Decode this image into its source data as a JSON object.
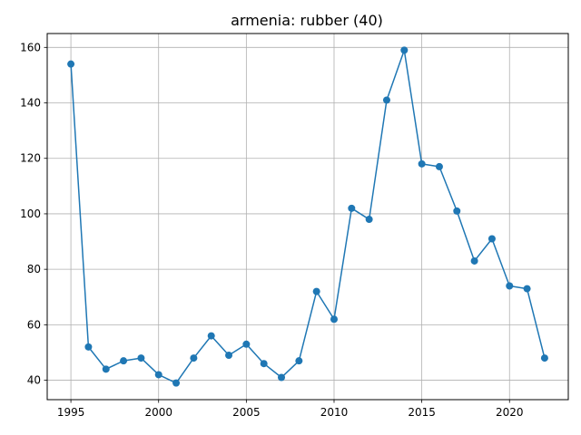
{
  "chart_data": {
    "type": "line",
    "title": "armenia: rubber (40)",
    "xlabel": "",
    "ylabel": "",
    "xlim": [
      1993.65,
      2023.35
    ],
    "ylim": [
      33.0,
      165.0
    ],
    "xticks": [
      1995,
      2000,
      2005,
      2010,
      2015,
      2020
    ],
    "yticks": [
      40,
      60,
      80,
      100,
      120,
      140,
      160
    ],
    "grid": true,
    "color": "#1f77b4",
    "series": [
      {
        "x": [
          1995,
          1996,
          1997,
          1998,
          1999,
          2000,
          2001,
          2002,
          2003,
          2004,
          2005,
          2006,
          2007,
          2008,
          2009,
          2010,
          2011,
          2012,
          2013,
          2014,
          2015,
          2016,
          2017,
          2018,
          2019,
          2020,
          2021,
          2022
        ],
        "values": [
          154,
          52,
          44,
          47,
          48,
          42,
          39,
          48,
          56,
          49,
          53,
          46,
          41,
          47,
          72,
          62,
          102,
          98,
          141,
          159,
          118,
          117,
          101,
          83,
          91,
          74,
          73,
          48
        ]
      }
    ]
  }
}
